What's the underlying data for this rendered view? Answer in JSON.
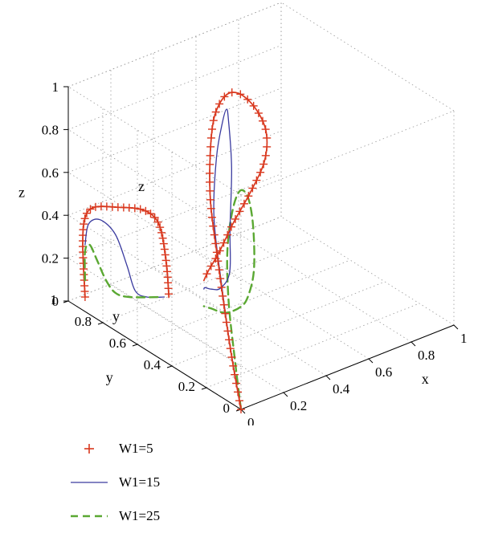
{
  "chart_data": {
    "type": "line",
    "projection": "3d",
    "grid": true,
    "legend_placement": "bottom-left",
    "axes": {
      "x": {
        "label": "x",
        "range": [
          0,
          1
        ],
        "ticks": [
          "0",
          "0.2",
          "0.4",
          "0.6",
          "0.8",
          "1"
        ]
      },
      "y": {
        "label": "y",
        "range": [
          0,
          1
        ],
        "ticks": [
          "0",
          "0.2",
          "0.4",
          "0.6",
          "0.8",
          "1"
        ]
      },
      "z": {
        "label": "z",
        "range": [
          0,
          1
        ],
        "ticks": [
          "0",
          "0.2",
          "0.4",
          "0.6",
          "0.8",
          "1"
        ]
      }
    },
    "inset": {
      "description": "projection onto the y–z wall",
      "y_label": "y",
      "z_label": "z"
    },
    "series": [
      {
        "name": "W1=5",
        "color": "#d9381e",
        "style": "solid-plus",
        "points": [
          [
            0.0,
            0.0,
            0.0
          ],
          [
            0.0,
            0.05,
            0.2
          ],
          [
            0.02,
            0.12,
            0.4
          ],
          [
            0.05,
            0.2,
            0.6
          ],
          [
            0.1,
            0.3,
            0.78
          ],
          [
            0.18,
            0.4,
            0.92
          ],
          [
            0.28,
            0.5,
            1.0
          ],
          [
            0.38,
            0.56,
            1.03
          ],
          [
            0.46,
            0.58,
            1.0
          ],
          [
            0.52,
            0.56,
            0.92
          ],
          [
            0.54,
            0.52,
            0.82
          ],
          [
            0.5,
            0.48,
            0.72
          ],
          [
            0.42,
            0.46,
            0.62
          ],
          [
            0.32,
            0.44,
            0.52
          ],
          [
            0.24,
            0.42,
            0.43
          ],
          [
            0.18,
            0.41,
            0.37
          ],
          [
            0.15,
            0.4,
            0.34
          ]
        ]
      },
      {
        "name": "W1=15",
        "color": "#3a3b9f",
        "style": "solid",
        "points": [
          [
            0.0,
            0.0,
            0.0
          ],
          [
            0.0,
            0.06,
            0.25
          ],
          [
            0.03,
            0.15,
            0.5
          ],
          [
            0.1,
            0.28,
            0.72
          ],
          [
            0.25,
            0.45,
            0.85
          ],
          [
            0.4,
            0.6,
            0.88
          ],
          [
            0.5,
            0.7,
            0.85
          ],
          [
            0.55,
            0.75,
            0.75
          ],
          [
            0.54,
            0.72,
            0.55
          ],
          [
            0.5,
            0.68,
            0.3
          ],
          [
            0.45,
            0.62,
            0.15
          ],
          [
            0.35,
            0.55,
            0.15
          ],
          [
            0.25,
            0.48,
            0.22
          ],
          [
            0.18,
            0.43,
            0.28
          ],
          [
            0.15,
            0.4,
            0.3
          ]
        ]
      },
      {
        "name": "W1=25",
        "color": "#5aa832",
        "style": "dashed",
        "points": [
          [
            0.0,
            0.0,
            0.0
          ],
          [
            0.05,
            0.1,
            0.18
          ],
          [
            0.12,
            0.22,
            0.35
          ],
          [
            0.22,
            0.35,
            0.48
          ],
          [
            0.35,
            0.48,
            0.55
          ],
          [
            0.45,
            0.56,
            0.56
          ],
          [
            0.52,
            0.6,
            0.48
          ],
          [
            0.56,
            0.62,
            0.32
          ],
          [
            0.58,
            0.64,
            0.1
          ],
          [
            0.52,
            0.6,
            0.02
          ],
          [
            0.42,
            0.52,
            0.05
          ],
          [
            0.3,
            0.46,
            0.1
          ],
          [
            0.2,
            0.42,
            0.18
          ],
          [
            0.15,
            0.4,
            0.22
          ]
        ]
      }
    ],
    "inset_series": [
      {
        "name": "W1=5",
        "points": [
          [
            0.02,
            0.0
          ],
          [
            0.0,
            0.25
          ],
          [
            0.02,
            0.38
          ],
          [
            0.1,
            0.43
          ],
          [
            0.3,
            0.43
          ],
          [
            0.5,
            0.42
          ],
          [
            0.62,
            0.38
          ],
          [
            0.68,
            0.3
          ],
          [
            0.72,
            0.15
          ],
          [
            0.74,
            0.0
          ]
        ]
      },
      {
        "name": "W1=15",
        "points": [
          [
            0.02,
            0.25
          ],
          [
            0.05,
            0.35
          ],
          [
            0.15,
            0.37
          ],
          [
            0.28,
            0.3
          ],
          [
            0.38,
            0.15
          ],
          [
            0.45,
            0.03
          ],
          [
            0.55,
            0.0
          ],
          [
            0.7,
            0.0
          ]
        ]
      },
      {
        "name": "W1=25",
        "points": [
          [
            0.02,
            0.08
          ],
          [
            0.02,
            0.22
          ],
          [
            0.06,
            0.25
          ],
          [
            0.12,
            0.18
          ],
          [
            0.2,
            0.08
          ],
          [
            0.28,
            0.02
          ],
          [
            0.4,
            0.0
          ],
          [
            0.68,
            0.0
          ]
        ]
      }
    ]
  },
  "legend": {
    "items": [
      {
        "label": "W1=5",
        "color": "#d9381e",
        "marker": "plus"
      },
      {
        "label": "W1=15",
        "color": "#3a3b9f",
        "marker": "line"
      },
      {
        "label": "W1=25",
        "color": "#5aa832",
        "marker": "dashed"
      }
    ]
  }
}
